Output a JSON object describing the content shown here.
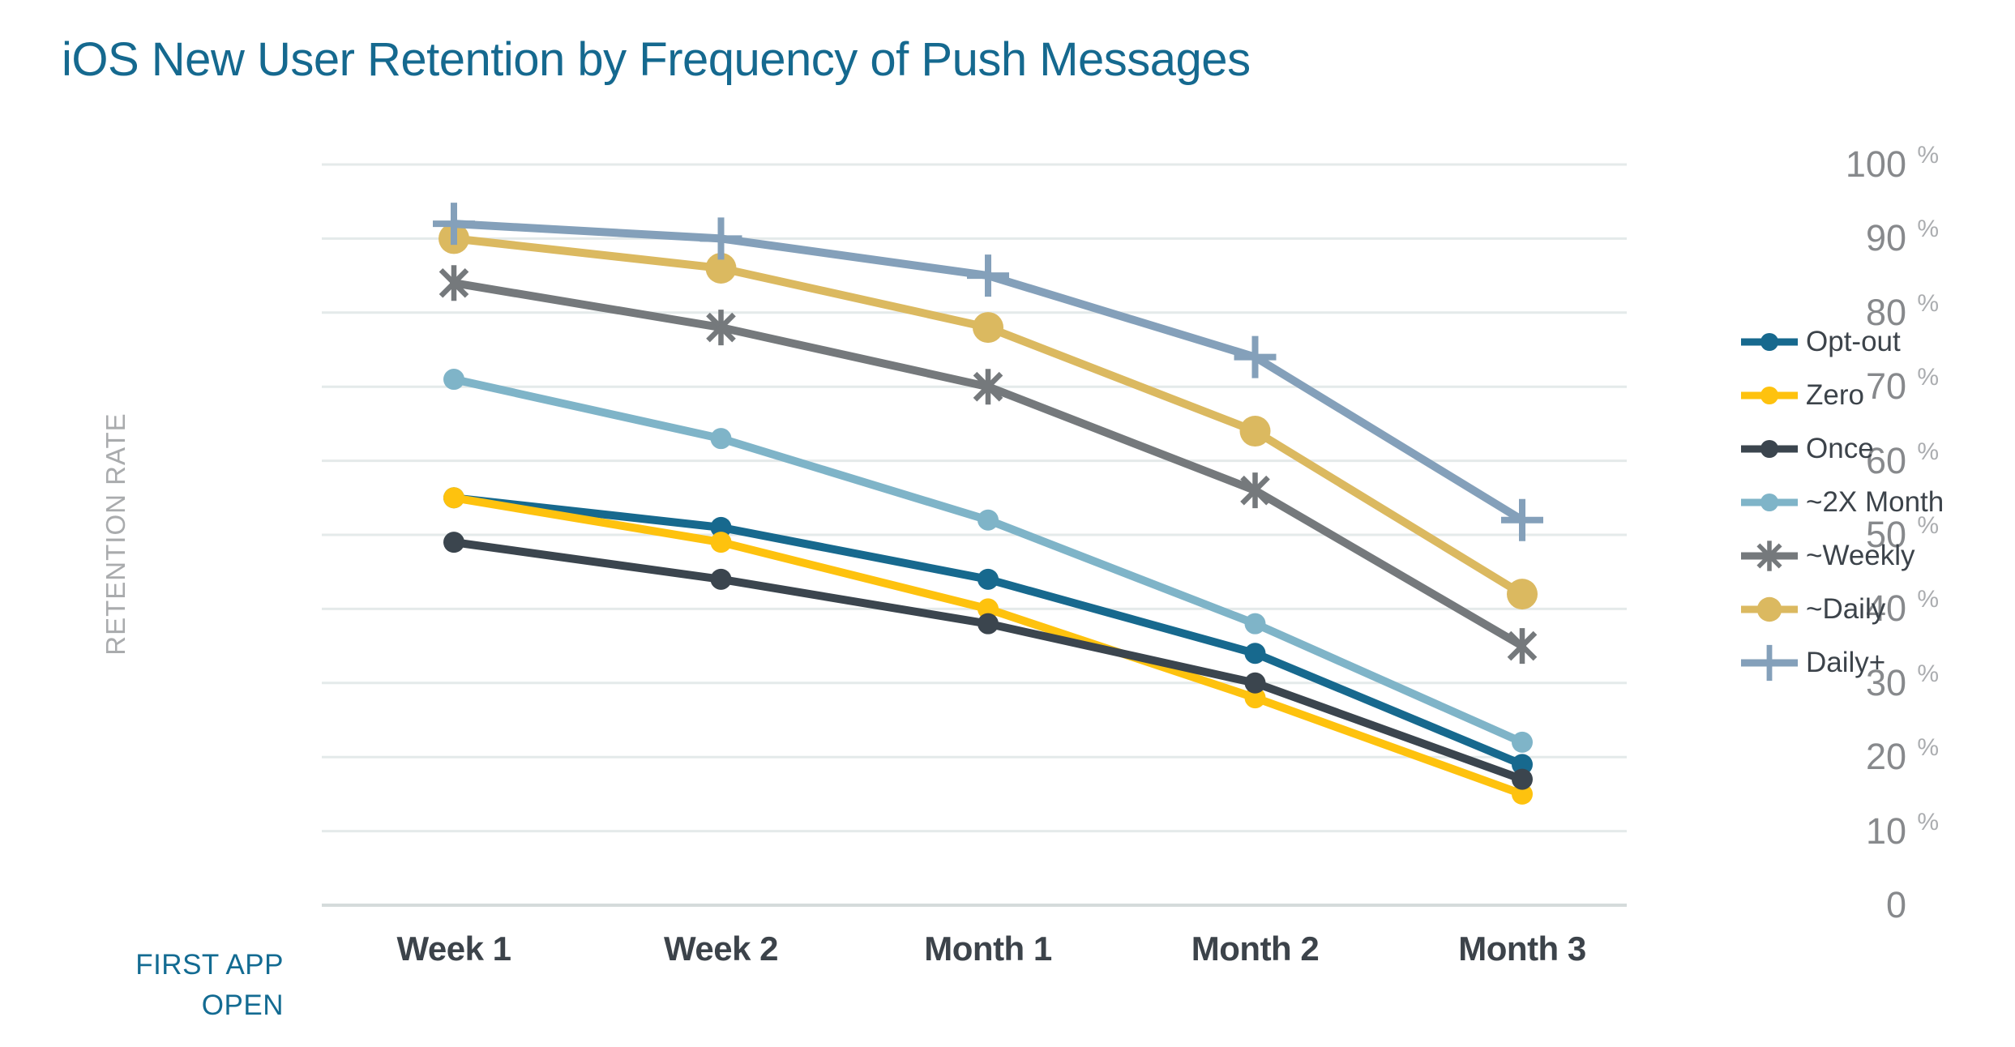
{
  "title": "iOS New User Retention by Frequency of Push Messages",
  "colors": {
    "title_accent": "#15698f",
    "origin_label_accent": "#136b92",
    "axis_tick_text": "#87898c",
    "axis_tick_suffix": "#abadb0",
    "axis_title_text": "#a9abad",
    "category_text": "#3c434a",
    "gridline": "#e4eaea",
    "baseline": "#d5dbdb",
    "background": "#ffffff"
  },
  "y_axis": {
    "title": "RETENTION RATE",
    "ticks": [
      {
        "label": "100",
        "suffix": "%"
      },
      {
        "label": "90",
        "suffix": "%"
      },
      {
        "label": "80",
        "suffix": "%"
      },
      {
        "label": "70",
        "suffix": "%"
      },
      {
        "label": "60",
        "suffix": "%"
      },
      {
        "label": "50",
        "suffix": "%"
      },
      {
        "label": "40",
        "suffix": "%"
      },
      {
        "label": "30",
        "suffix": "%"
      },
      {
        "label": "20",
        "suffix": "%"
      },
      {
        "label": "10",
        "suffix": "%"
      },
      {
        "label": "0",
        "suffix": ""
      }
    ]
  },
  "x_axis": {
    "origin_label": "FIRST APP OPEN",
    "categories": [
      "Week 1",
      "Week 2",
      "Month 1",
      "Month 2",
      "Month 3"
    ]
  },
  "chart_data": {
    "type": "line",
    "title": "iOS New User Retention by Frequency of Push Messages",
    "categories": [
      "Week 1",
      "Week 2",
      "Month 1",
      "Month 2",
      "Month 3"
    ],
    "xlabel": "FIRST APP OPEN",
    "ylabel": "RETENTION RATE",
    "ylim": [
      0,
      100
    ],
    "y_tick_step": 10,
    "y_tick_suffix": "%",
    "grid": "horizontal",
    "legend_position": "right",
    "series": [
      {
        "name": "Opt-out",
        "color": "#17698e",
        "marker": "circle",
        "values": [
          55,
          51,
          44,
          34,
          19
        ]
      },
      {
        "name": "Zero",
        "color": "#fec20e",
        "marker": "circle",
        "values": [
          55,
          49,
          40,
          28,
          15
        ]
      },
      {
        "name": "Once",
        "color": "#3b454e",
        "marker": "circle",
        "values": [
          49,
          44,
          38,
          30,
          17
        ]
      },
      {
        "name": "~2X Month",
        "color": "#7fb4c8",
        "marker": "circle",
        "values": [
          71,
          63,
          52,
          38,
          22
        ]
      },
      {
        "name": "~Weekly",
        "color": "#75797c",
        "marker": "asterisk",
        "values": [
          84,
          78,
          70,
          56,
          35
        ]
      },
      {
        "name": "~Daily",
        "color": "#dbb960",
        "marker": "circle-xl",
        "values": [
          90,
          86,
          78,
          64,
          42
        ]
      },
      {
        "name": "Daily+",
        "color": "#84a0ba",
        "marker": "plus",
        "values": [
          92,
          90,
          85,
          74,
          52
        ]
      }
    ]
  }
}
